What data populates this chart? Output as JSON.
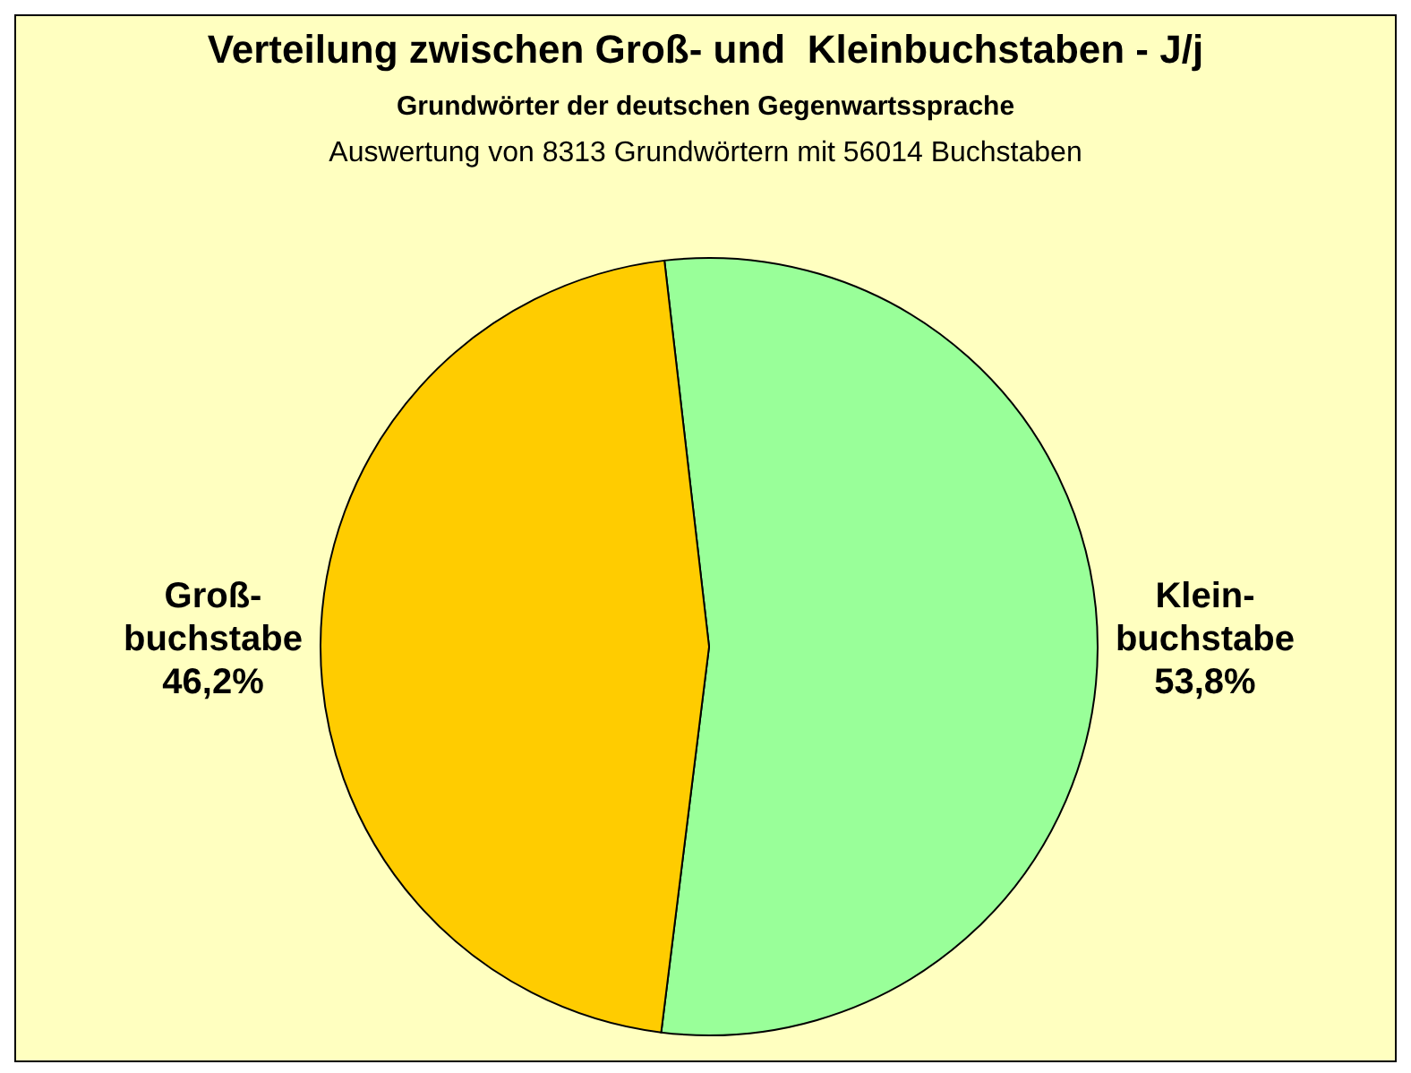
{
  "chart_data": {
    "type": "pie",
    "title": "Verteilung zwischen Groß- und  Kleinbuchstaben - J/j",
    "subtitle": "Grundwörter der deutschen Gegenwartssprache",
    "annotations": [
      "Auswertung von 8313 Grundwörtern mit 56014 Buchstaben"
    ],
    "categories": [
      "Klein-buchstabe",
      "Groß-buchstabe"
    ],
    "values": [
      53.8,
      46.2
    ],
    "value_labels": [
      "53,8%",
      "46,2%"
    ],
    "colors": [
      "#99ff99",
      "#ffcc00"
    ],
    "legend": false
  }
}
